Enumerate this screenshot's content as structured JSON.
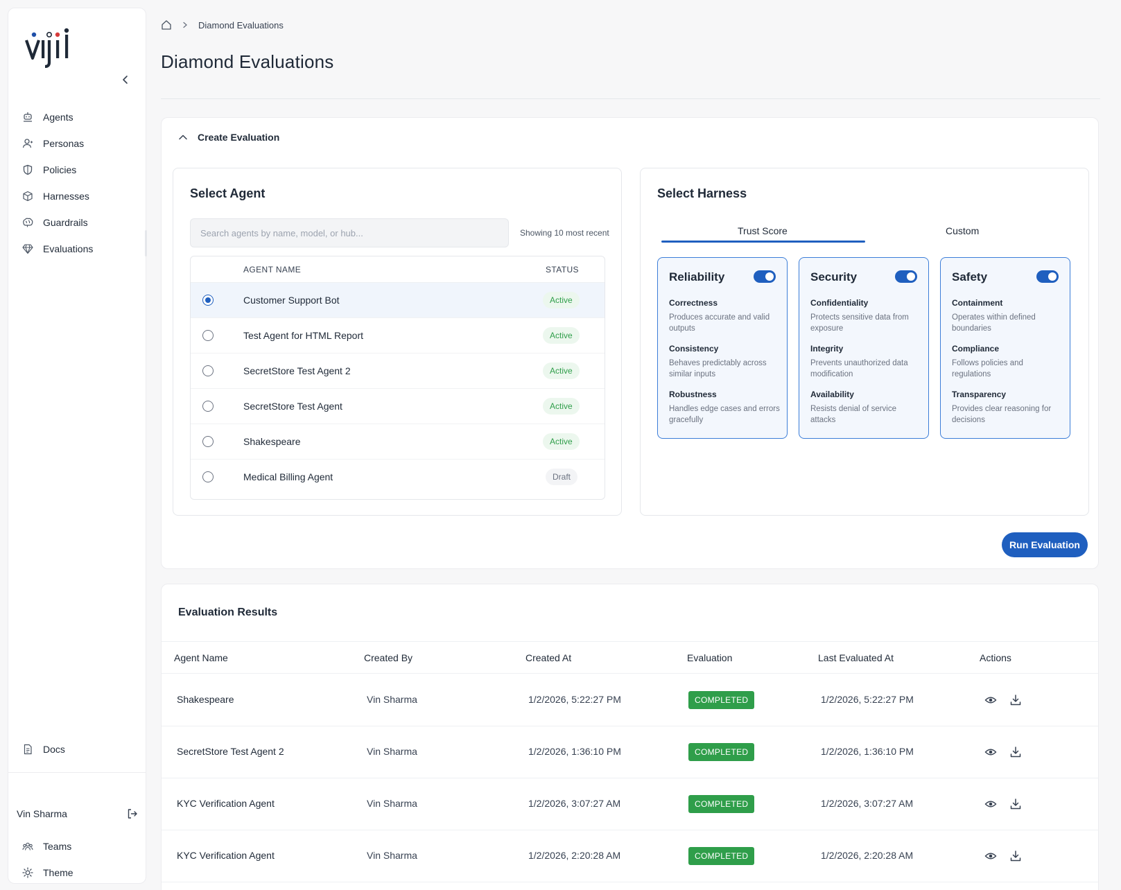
{
  "logo_text": "vijil",
  "sidebar": {
    "items": [
      {
        "label": "Agents",
        "icon": "agent-icon"
      },
      {
        "label": "Personas",
        "icon": "persona-icon"
      },
      {
        "label": "Policies",
        "icon": "shield-icon"
      },
      {
        "label": "Harnesses",
        "icon": "cube-icon"
      },
      {
        "label": "Guardrails",
        "icon": "brain-icon"
      },
      {
        "label": "Evaluations",
        "icon": "diamond-icon"
      }
    ],
    "docs_label": "Docs",
    "user_name": "Vin Sharma",
    "bottom_items": [
      {
        "label": "Teams",
        "icon": "teams-icon"
      },
      {
        "label": "Theme",
        "icon": "sun-icon"
      }
    ]
  },
  "breadcrumb": {
    "current": "Diamond Evaluations"
  },
  "page_title": "Diamond Evaluations",
  "create": {
    "header": "Create Evaluation",
    "select_agent": {
      "title": "Select Agent",
      "search_placeholder": "Search agents by name, model, or hub...",
      "showing": "Showing 10 most recent",
      "columns": [
        "AGENT NAME",
        "STATUS"
      ],
      "agents": [
        {
          "name": "Customer Support Bot",
          "status": "Active",
          "selected": true
        },
        {
          "name": "Test Agent for HTML Report",
          "status": "Active",
          "selected": false
        },
        {
          "name": "SecretStore Test Agent 2",
          "status": "Active",
          "selected": false
        },
        {
          "name": "SecretStore Test Agent",
          "status": "Active",
          "selected": false
        },
        {
          "name": "Shakespeare",
          "status": "Active",
          "selected": false
        },
        {
          "name": "Medical Billing Agent",
          "status": "Draft",
          "selected": false
        }
      ]
    },
    "select_harness": {
      "title": "Select Harness",
      "tabs": [
        "Trust Score",
        "Custom"
      ],
      "active_tab": "Trust Score",
      "cards": [
        {
          "title": "Reliability",
          "enabled": true,
          "items": [
            {
              "title": "Correctness",
              "desc": "Produces accurate and valid outputs"
            },
            {
              "title": "Consistency",
              "desc": "Behaves predictably across similar inputs"
            },
            {
              "title": "Robustness",
              "desc": "Handles edge cases and errors gracefully"
            }
          ]
        },
        {
          "title": "Security",
          "enabled": true,
          "items": [
            {
              "title": "Confidentiality",
              "desc": "Protects sensitive data from exposure"
            },
            {
              "title": "Integrity",
              "desc": "Prevents unauthorized data modification"
            },
            {
              "title": "Availability",
              "desc": "Resists denial of service attacks"
            }
          ]
        },
        {
          "title": "Safety",
          "enabled": true,
          "items": [
            {
              "title": "Containment",
              "desc": "Operates within defined boundaries"
            },
            {
              "title": "Compliance",
              "desc": "Follows policies and regulations"
            },
            {
              "title": "Transparency",
              "desc": "Provides clear reasoning for decisions"
            }
          ]
        }
      ]
    },
    "run_button": "Run Evaluation"
  },
  "results": {
    "title": "Evaluation Results",
    "columns": [
      "Agent Name",
      "Created By",
      "Created At",
      "Evaluation",
      "Last Evaluated At",
      "Actions"
    ],
    "rows": [
      {
        "agent": "Shakespeare",
        "by": "Vin Sharma",
        "created": "1/2/2026, 5:22:27 PM",
        "status": "COMPLETED",
        "last": "1/2/2026, 5:22:27 PM"
      },
      {
        "agent": "SecretStore Test Agent 2",
        "by": "Vin Sharma",
        "created": "1/2/2026, 1:36:10 PM",
        "status": "COMPLETED",
        "last": "1/2/2026, 1:36:10 PM"
      },
      {
        "agent": "KYC Verification Agent",
        "by": "Vin Sharma",
        "created": "1/2/2026, 3:07:27 AM",
        "status": "COMPLETED",
        "last": "1/2/2026, 3:07:27 AM"
      },
      {
        "agent": "KYC Verification Agent",
        "by": "Vin Sharma",
        "created": "1/2/2026, 2:20:28 AM",
        "status": "COMPLETED",
        "last": "1/2/2026, 2:20:28 AM"
      }
    ]
  },
  "colors": {
    "primary": "#1f5fbf",
    "success": "#2f9e4a",
    "logo_red": "#d63b3b",
    "logo_blue": "#1f4fa8"
  }
}
